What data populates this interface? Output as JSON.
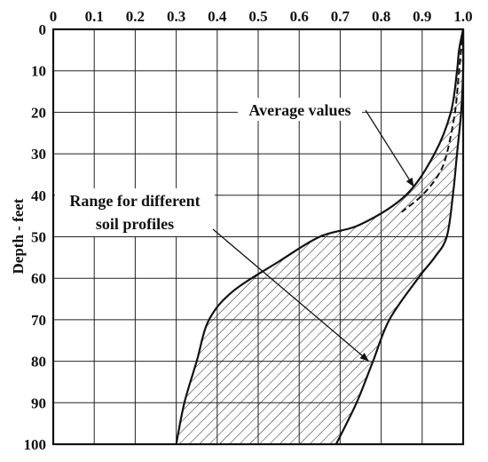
{
  "chart_data": {
    "type": "area",
    "title": "",
    "xlabel": "",
    "ylabel": "Depth - feet",
    "xlim": [
      0,
      1.0
    ],
    "ylim": [
      0,
      100
    ],
    "y_inverted": true,
    "x_axis_position": "top",
    "grid": true,
    "x_ticks": [
      "0",
      "0.1",
      "0.2",
      "0.3",
      "0.4",
      "0.5",
      "0.6",
      "0.7",
      "0.8",
      "0.9",
      "1.0"
    ],
    "y_ticks": [
      "0",
      "10",
      "20",
      "30",
      "40",
      "50",
      "60",
      "70",
      "80",
      "90",
      "100"
    ],
    "series": [
      {
        "role": "lower-bound",
        "points": [
          [
            1.0,
            0
          ],
          [
            0.99,
            5
          ],
          [
            0.985,
            10
          ],
          [
            0.97,
            20
          ],
          [
            0.93,
            30
          ],
          [
            0.86,
            40
          ],
          [
            0.75,
            47
          ],
          [
            0.65,
            50
          ],
          [
            0.55,
            56
          ],
          [
            0.44,
            63
          ],
          [
            0.38,
            70
          ],
          [
            0.35,
            80
          ],
          [
            0.32,
            90
          ],
          [
            0.3,
            100
          ]
        ]
      },
      {
        "role": "upper-bound",
        "points": [
          [
            1.0,
            0
          ],
          [
            1.0,
            10
          ],
          [
            0.995,
            20
          ],
          [
            0.985,
            30
          ],
          [
            0.975,
            40
          ],
          [
            0.96,
            50
          ],
          [
            0.93,
            55
          ],
          [
            0.89,
            60
          ],
          [
            0.82,
            70
          ],
          [
            0.78,
            80
          ],
          [
            0.74,
            90
          ],
          [
            0.69,
            100
          ]
        ]
      },
      {
        "role": "average",
        "style": "dashed",
        "points": [
          [
            1.0,
            0
          ],
          [
            0.99,
            10
          ],
          [
            0.98,
            20
          ],
          [
            0.96,
            30
          ],
          [
            0.94,
            35
          ],
          [
            0.9,
            40
          ],
          [
            0.85,
            44
          ]
        ]
      }
    ],
    "annotations": [
      {
        "text": "Average values",
        "arrow_to": [
          0.88,
          38
        ]
      },
      {
        "text": "Range for different",
        "text2": "soil profiles",
        "arrow_to": [
          0.77,
          80
        ]
      }
    ]
  }
}
